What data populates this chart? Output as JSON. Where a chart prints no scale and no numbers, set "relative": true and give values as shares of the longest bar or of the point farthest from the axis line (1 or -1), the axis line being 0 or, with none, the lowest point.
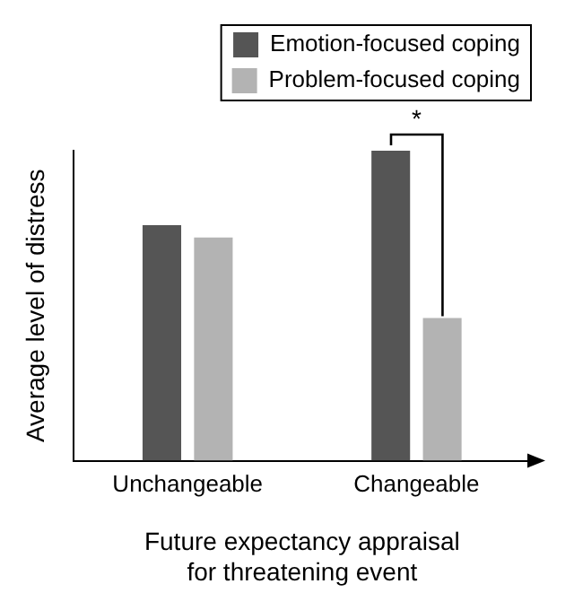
{
  "chart_data": {
    "type": "bar",
    "relative": true,
    "xlabel": "Future expectancy appraisal\nfor threatening event",
    "ylabel": "Average level of distress",
    "categories": [
      "Unchangeable",
      "Changeable"
    ],
    "series": [
      {
        "name": "Emotion-focused coping",
        "color": "#555555",
        "values": [
          0.76,
          1
        ]
      },
      {
        "name": "Problem-focused coping",
        "color": "#b3b3b3",
        "values": [
          0.72,
          0.46
        ]
      }
    ],
    "legend": "top right",
    "grid": false,
    "annotations": [
      "*"
    ]
  }
}
